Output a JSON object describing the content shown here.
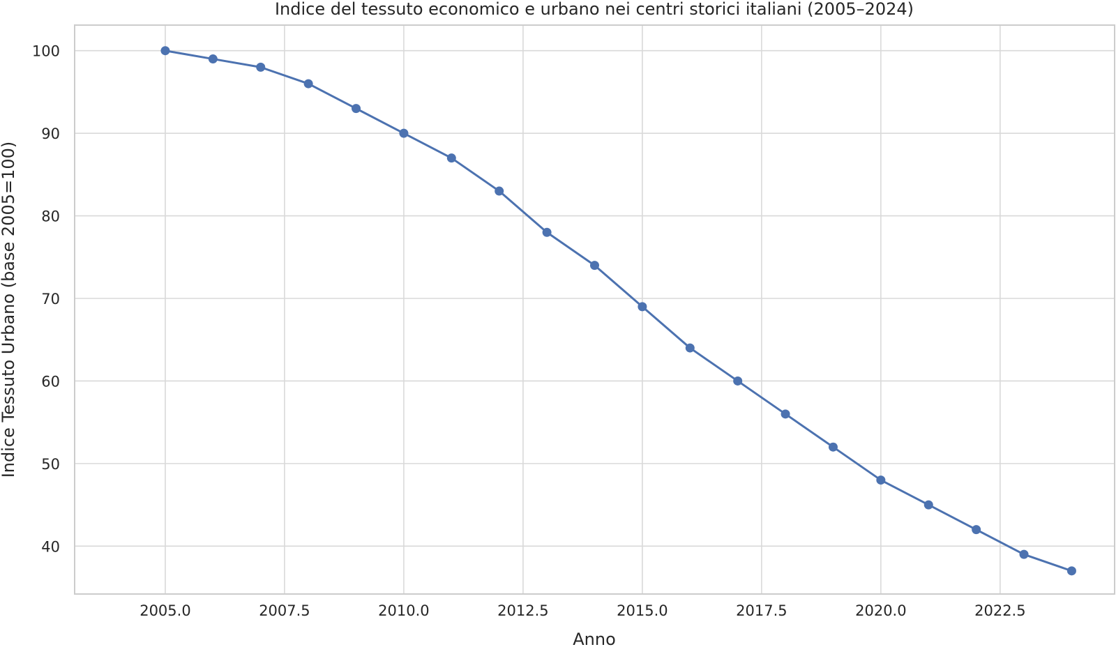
{
  "chart_data": {
    "type": "line",
    "title": "Indice del tessuto economico e urbano nei centri storici italiani (2005–2024)",
    "xlabel": "Anno",
    "ylabel": "Indice Tessuto Urbano (base 2005=100)",
    "xlim": [
      2003.1,
      2024.9
    ],
    "ylim": [
      34.2,
      103.1
    ],
    "xticks": [
      2005.0,
      2007.5,
      2010.0,
      2012.5,
      2015.0,
      2017.5,
      2020.0,
      2022.5
    ],
    "xtick_labels": [
      "2005.0",
      "2007.5",
      "2010.0",
      "2012.5",
      "2015.0",
      "2017.5",
      "2020.0",
      "2022.5"
    ],
    "yticks": [
      40,
      50,
      60,
      70,
      80,
      90,
      100
    ],
    "ytick_labels": [
      "40",
      "50",
      "60",
      "70",
      "80",
      "90",
      "100"
    ],
    "grid": true,
    "legend": "none",
    "color": "#4c72b0",
    "series": [
      {
        "x": [
          2005,
          2006,
          2007,
          2008,
          2009,
          2010,
          2011,
          2012,
          2013,
          2014,
          2015,
          2016,
          2017,
          2018,
          2019,
          2020,
          2021,
          2022,
          2023,
          2024
        ],
        "values": [
          100,
          99,
          98,
          96,
          93,
          90,
          87,
          83,
          78,
          74,
          69,
          64,
          60,
          56,
          52,
          48,
          45,
          42,
          39,
          37
        ]
      }
    ]
  }
}
